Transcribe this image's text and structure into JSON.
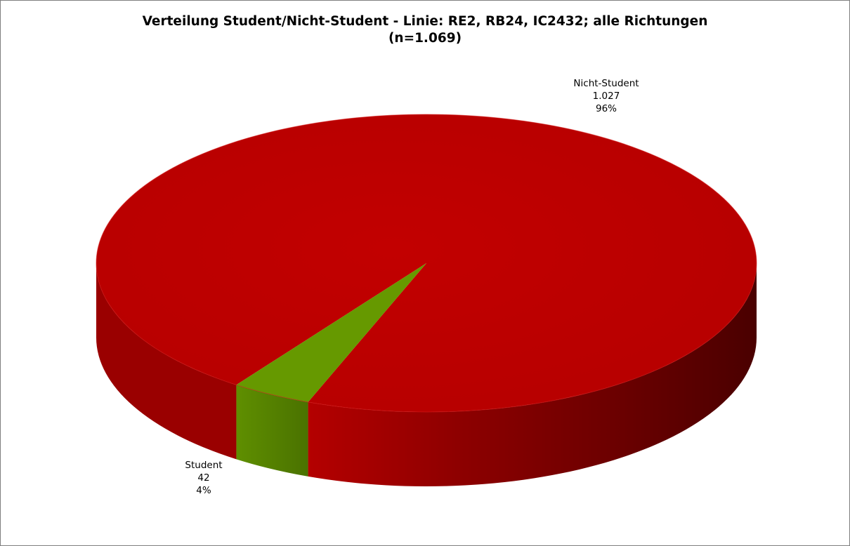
{
  "chart_data": {
    "type": "pie",
    "title": "Verteilung Student/Nicht-Student - Linie: RE2, RB24, IC2432; alle Richtungen",
    "subtitle": "(n=1.069)",
    "slices": [
      {
        "name": "Nicht-Student",
        "value": 1027,
        "value_label": "1.027",
        "percent": 96,
        "percent_label": "96%",
        "color": "#be0000",
        "side_color": "#8a0000"
      },
      {
        "name": "Student",
        "value": 42,
        "value_label": "42",
        "percent": 4,
        "percent_label": "4%",
        "color": "#669900",
        "side_color": "#4d7a00"
      }
    ],
    "style": "3d-perspective",
    "legend": "none",
    "data_labels": "outside"
  }
}
